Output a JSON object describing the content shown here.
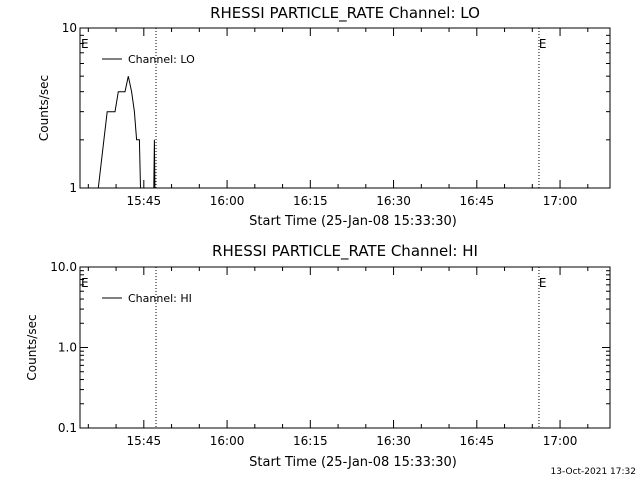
{
  "chart_data": [
    {
      "type": "line",
      "title": "RHESSI PARTICLE_RATE Channel: LO",
      "xlabel": "Start Time (25-Jan-08 15:33:30)",
      "ylabel": "Counts/sec",
      "x_tick_labels": [
        "15:45",
        "16:00",
        "16:15",
        "16:30",
        "16:45",
        "17:00"
      ],
      "x_tick_minutes": [
        705,
        720,
        735,
        750,
        765,
        780
      ],
      "xlim_minutes": [
        693.5,
        789
      ],
      "y_scale": "log",
      "ylim": [
        1,
        10
      ],
      "y_tick_values": [
        1,
        10
      ],
      "y_tick_labels": [
        "1",
        "10"
      ],
      "legend": "Channel: LO",
      "legend_position": "top-left",
      "markers": [
        {
          "label": "E",
          "minute": 693.5
        },
        {
          "label": "E",
          "minute": 776
        }
      ],
      "vertical_lines_minutes": [
        707.2,
        776.2,
        789
      ],
      "series": [
        {
          "name": "Channel: LO",
          "x_minutes": [
            696.8,
            697.8,
            698.4,
            699.2,
            699.8,
            700.4,
            700.8,
            701.6,
            702.2,
            702.8,
            703.3,
            703.7,
            704.2,
            704.4,
            704.6,
            705.3,
            706.8,
            706.9,
            707.0
          ],
          "values": [
            1.0,
            2.0,
            3.0,
            3.0,
            3.0,
            4.0,
            4.0,
            4.0,
            5.0,
            4.0,
            3.0,
            2.0,
            2.0,
            1.0,
            1.0,
            1.0,
            1.0,
            2.0,
            1.0
          ]
        }
      ]
    },
    {
      "type": "line",
      "title": "RHESSI PARTICLE_RATE Channel: HI",
      "xlabel": "Start Time (25-Jan-08 15:33:30)",
      "ylabel": "Counts/sec",
      "x_tick_labels": [
        "15:45",
        "16:00",
        "16:15",
        "16:30",
        "16:45",
        "17:00"
      ],
      "x_tick_minutes": [
        705,
        720,
        735,
        750,
        765,
        780
      ],
      "xlim_minutes": [
        693.5,
        789
      ],
      "y_scale": "log",
      "ylim": [
        0.1,
        10
      ],
      "y_tick_values": [
        0.1,
        1,
        10
      ],
      "y_tick_labels": [
        "0.1",
        "1.0",
        "10.0"
      ],
      "legend": "Channel: HI",
      "legend_position": "top-left",
      "markers": [
        {
          "label": "E",
          "minute": 693.5
        },
        {
          "label": "E",
          "minute": 776
        }
      ],
      "vertical_lines_minutes": [
        707.2,
        776.2,
        789
      ],
      "series": [
        {
          "name": "Channel: HI",
          "x_minutes": [],
          "values": []
        }
      ]
    }
  ],
  "footer": "13-Oct-2021 17:32"
}
